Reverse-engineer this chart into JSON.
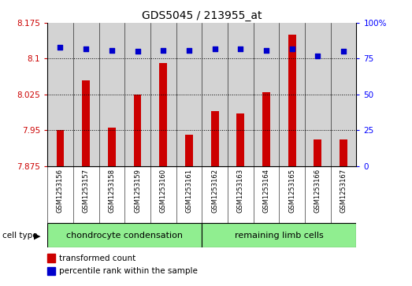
{
  "title": "GDS5045 / 213955_at",
  "samples": [
    "GSM1253156",
    "GSM1253157",
    "GSM1253158",
    "GSM1253159",
    "GSM1253160",
    "GSM1253161",
    "GSM1253162",
    "GSM1253163",
    "GSM1253164",
    "GSM1253165",
    "GSM1253166",
    "GSM1253167"
  ],
  "transformed_counts": [
    7.95,
    8.055,
    7.955,
    8.025,
    8.09,
    7.94,
    7.99,
    7.985,
    8.03,
    8.15,
    7.93,
    7.93
  ],
  "percentile_ranks": [
    83,
    82,
    81,
    80,
    81,
    81,
    82,
    82,
    81,
    82,
    77,
    80
  ],
  "bar_color": "#cc0000",
  "dot_color": "#0000cc",
  "ymin": 7.875,
  "ymax": 8.175,
  "y_ticks": [
    7.875,
    7.95,
    8.025,
    8.1,
    8.175
  ],
  "y_tick_labels": [
    "7.875",
    "7.95",
    "8.025",
    "8.1",
    "8.175"
  ],
  "y2min": 0,
  "y2max": 100,
  "y2_ticks": [
    0,
    25,
    50,
    75,
    100
  ],
  "y2_tick_labels": [
    "0",
    "25",
    "50",
    "75",
    "100%"
  ],
  "grid_lines": [
    7.95,
    8.025,
    8.1
  ],
  "group1_label": "chondrocyte condensation",
  "group2_label": "remaining limb cells",
  "group1_count": 6,
  "group2_count": 6,
  "cell_type_label": "cell type",
  "legend1_label": "transformed count",
  "legend2_label": "percentile rank within the sample",
  "group1_color": "#90ee90",
  "group2_color": "#90ee90",
  "bar_bg_color": "#d3d3d3",
  "plot_bg_color": "#ffffff",
  "bar_bottom": 7.875,
  "bar_width": 0.3
}
